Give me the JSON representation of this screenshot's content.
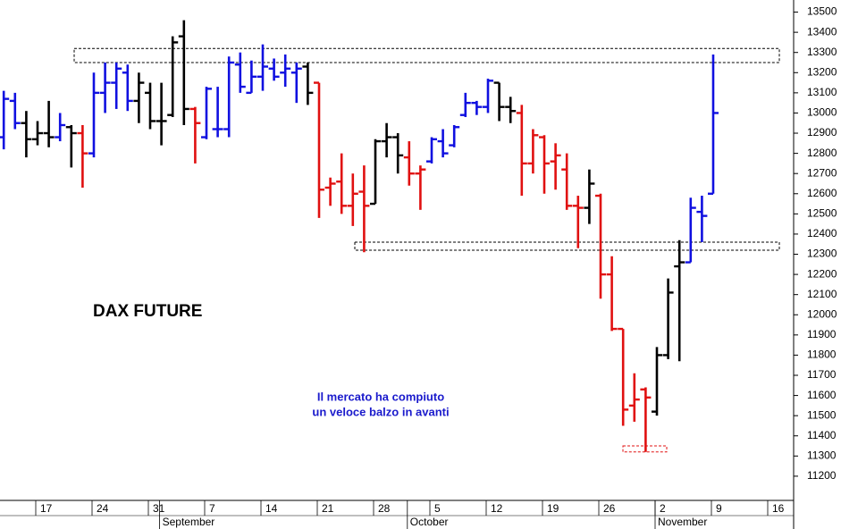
{
  "chart_data": {
    "type": "ohlc",
    "title": "DAX FUTURE",
    "annotations": [
      "Il mercato ha compiuto",
      "un veloce balzo in avanti"
    ],
    "categories": [
      null,
      null,
      null,
      "17",
      null,
      null,
      null,
      null,
      "24",
      null,
      null,
      null,
      null,
      "31",
      null,
      null,
      null,
      null,
      "7",
      null,
      null,
      null,
      null,
      "14",
      null,
      null,
      null,
      null,
      "21",
      null,
      null,
      null,
      null,
      "28",
      null,
      null,
      null,
      null,
      "5",
      null,
      null,
      null,
      null,
      "12",
      null,
      null,
      null,
      null,
      "19",
      null,
      null,
      null,
      null,
      "26",
      null,
      null,
      null,
      null,
      "2",
      null,
      null,
      null,
      null,
      "9",
      null,
      null,
      null,
      null,
      "16"
    ],
    "months": [
      null,
      null,
      null,
      null,
      null,
      null,
      null,
      null,
      null,
      null,
      null,
      null,
      null,
      null,
      "September",
      null,
      null,
      null,
      null,
      null,
      null,
      null,
      null,
      null,
      null,
      null,
      null,
      null,
      null,
      null,
      null,
      null,
      null,
      null,
      null,
      null,
      "October",
      null,
      null,
      null,
      null,
      null,
      null,
      null,
      null,
      null,
      null,
      null,
      null,
      null,
      null,
      null,
      null,
      null,
      null,
      null,
      null,
      null,
      "November",
      null,
      null,
      null,
      null,
      null,
      null,
      null,
      null,
      null,
      null
    ],
    "open": [
      12880,
      13060,
      12950,
      12870,
      12900,
      12880,
      12930,
      12900,
      12800,
      13100,
      13150,
      13200,
      13060,
      13100,
      12960,
      12990,
      13380,
      13020,
      12880,
      12920,
      12920,
      13240,
      13100,
      13180,
      13220,
      13200,
      13200,
      13230,
      13150,
      12630,
      12660,
      12540,
      12610,
      12550,
      12860,
      12880,
      12780,
      12700,
      12760,
      12860,
      12840,
      12990,
      13050,
      13030,
      13150,
      13030,
      13000,
      12750,
      12880,
      12760,
      12720,
      12540,
      12530,
      12590,
      12200,
      11930,
      11550,
      11630,
      11520,
      11800,
      12240,
      12260,
      12510,
      12600,
      null,
      null,
      null,
      null,
      null
    ],
    "high": [
      13110,
      13100,
      13010,
      12960,
      13060,
      13000,
      12940,
      12940,
      13200,
      13250,
      13250,
      13240,
      13200,
      13150,
      13150,
      13380,
      13460,
      13030,
      13130,
      13130,
      13280,
      13300,
      13260,
      13340,
      13270,
      13290,
      13250,
      13250,
      13150,
      12680,
      12800,
      12700,
      12740,
      12870,
      12950,
      12900,
      12860,
      12740,
      12880,
      12920,
      12940,
      13100,
      13060,
      13170,
      13150,
      13080,
      13040,
      12920,
      12890,
      12850,
      12800,
      12590,
      12720,
      12600,
      12290,
      11930,
      11710,
      11640,
      11840,
      12180,
      12370,
      12580,
      12590,
      13290,
      null,
      null,
      null,
      null,
      null
    ],
    "low": [
      12820,
      12920,
      12780,
      12840,
      12830,
      12860,
      12730,
      12630,
      12780,
      13000,
      13020,
      13010,
      12950,
      12920,
      12840,
      12980,
      12940,
      12750,
      12870,
      12880,
      12880,
      13100,
      13100,
      13110,
      13160,
      13130,
      13050,
      13040,
      12480,
      12540,
      12500,
      12440,
      12310,
      12550,
      12780,
      12700,
      12640,
      12520,
      12750,
      12780,
      12830,
      12980,
      12990,
      13000,
      12960,
      12950,
      12590,
      12700,
      12600,
      12620,
      12520,
      12330,
      12450,
      12080,
      11920,
      11450,
      11470,
      11320,
      11500,
      11780,
      11770,
      12260,
      12360,
      12600,
      null,
      null,
      null,
      null,
      null
    ],
    "close": [
      13070,
      12950,
      12870,
      12900,
      12880,
      12940,
      12900,
      12800,
      13100,
      13150,
      13220,
      13060,
      13150,
      12960,
      12960,
      13350,
      13020,
      12950,
      13120,
      12920,
      13250,
      13130,
      13180,
      13230,
      13180,
      13220,
      13220,
      13100,
      12620,
      12650,
      12540,
      12600,
      12540,
      12860,
      12880,
      12790,
      12700,
      12720,
      12870,
      12800,
      12930,
      13050,
      13030,
      13160,
      13030,
      13010,
      12750,
      12890,
      12750,
      12790,
      12540,
      12530,
      12650,
      12200,
      11930,
      11530,
      11580,
      11590,
      11800,
      12110,
      12260,
      12530,
      12490,
      13000,
      null,
      null,
      null,
      null,
      null
    ],
    "colors": [
      "#1010e0",
      "#1010e0",
      "#000000",
      "#000000",
      "#000000",
      "#1010e0",
      "#000000",
      "#e01010",
      "#1010e0",
      "#1010e0",
      "#1010e0",
      "#1010e0",
      "#000000",
      "#000000",
      "#000000",
      "#000000",
      "#000000",
      "#e01010",
      "#1010e0",
      "#1010e0",
      "#1010e0",
      "#1010e0",
      "#1010e0",
      "#1010e0",
      "#1010e0",
      "#1010e0",
      "#1010e0",
      "#000000",
      "#e01010",
      "#e01010",
      "#e01010",
      "#e01010",
      "#e01010",
      "#000000",
      "#000000",
      "#000000",
      "#e01010",
      "#e01010",
      "#1010e0",
      "#1010e0",
      "#1010e0",
      "#1010e0",
      "#1010e0",
      "#1010e0",
      "#000000",
      "#000000",
      "#e01010",
      "#e01010",
      "#e01010",
      "#e01010",
      "#e01010",
      "#e01010",
      "#000000",
      "#e01010",
      "#e01010",
      "#e01010",
      "#e01010",
      "#e01010",
      "#000000",
      "#000000",
      "#000000",
      "#1010e0",
      "#1010e0",
      "#1010e0",
      null,
      null,
      null,
      null,
      null
    ],
    "zones": [
      {
        "low": 13250,
        "high": 13320,
        "color": "#000000"
      },
      {
        "low": 12320,
        "high": 12360,
        "color": "#000000"
      },
      {
        "low": 11320,
        "high": 11350,
        "color": "#e01010"
      }
    ],
    "ylim": [
      11080,
      13560
    ],
    "yticks": [
      11200,
      11300,
      11400,
      11500,
      11600,
      11700,
      11800,
      11900,
      12000,
      12100,
      12200,
      12300,
      12400,
      12500,
      12600,
      12700,
      12800,
      12900,
      13000,
      13100,
      13200,
      13300,
      13400,
      13500
    ]
  }
}
